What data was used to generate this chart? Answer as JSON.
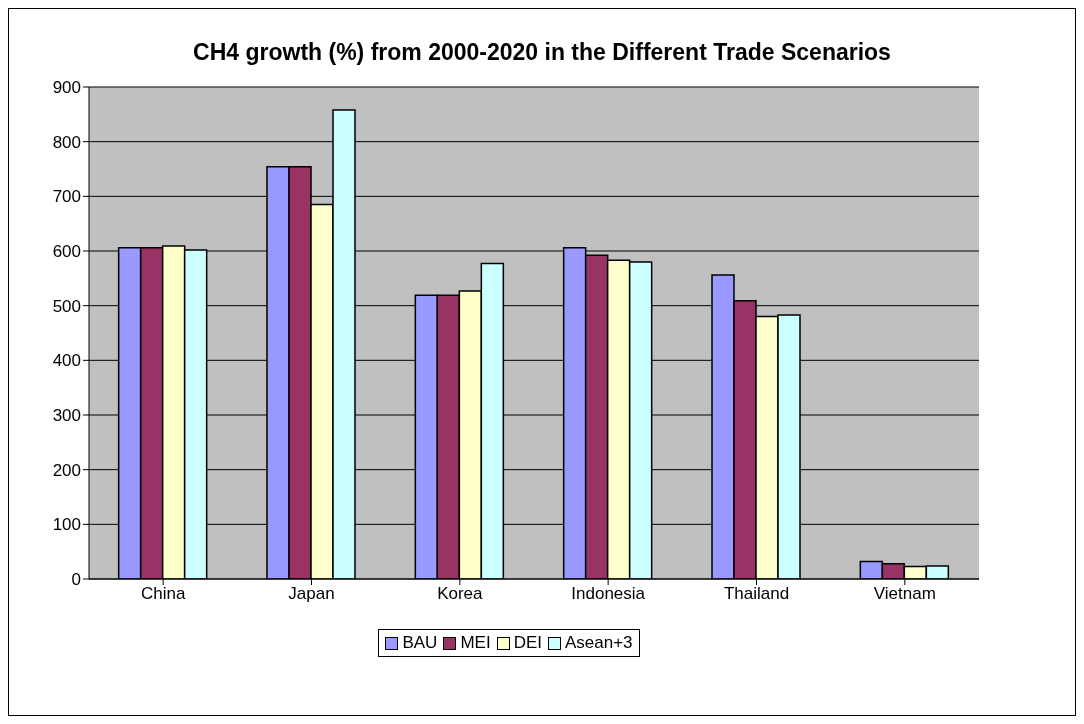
{
  "chart_data": {
    "type": "bar",
    "title": "CH4 growth (%) from 2000-2020 in the Different Trade Scenarios",
    "categories": [
      "China",
      "Japan",
      "Korea",
      "Indonesia",
      "Thailand",
      "Vietnam"
    ],
    "series": [
      {
        "name": "BAU",
        "color": "#9999ff",
        "values": [
          606,
          754,
          519,
          606,
          556,
          32
        ]
      },
      {
        "name": "MEI",
        "color": "#993366",
        "values": [
          606,
          754,
          519,
          592,
          509,
          28
        ]
      },
      {
        "name": "DEI",
        "color": "#ffffcc",
        "values": [
          609,
          685,
          527,
          583,
          480,
          23
        ]
      },
      {
        "name": "Asean+3",
        "color": "#ccffff",
        "values": [
          602,
          858,
          577,
          580,
          483,
          24
        ]
      }
    ],
    "ylim": [
      0,
      900
    ],
    "yticks": [
      0,
      100,
      200,
      300,
      400,
      500,
      600,
      700,
      800,
      900
    ],
    "grid": "y",
    "legend": "bottom"
  }
}
